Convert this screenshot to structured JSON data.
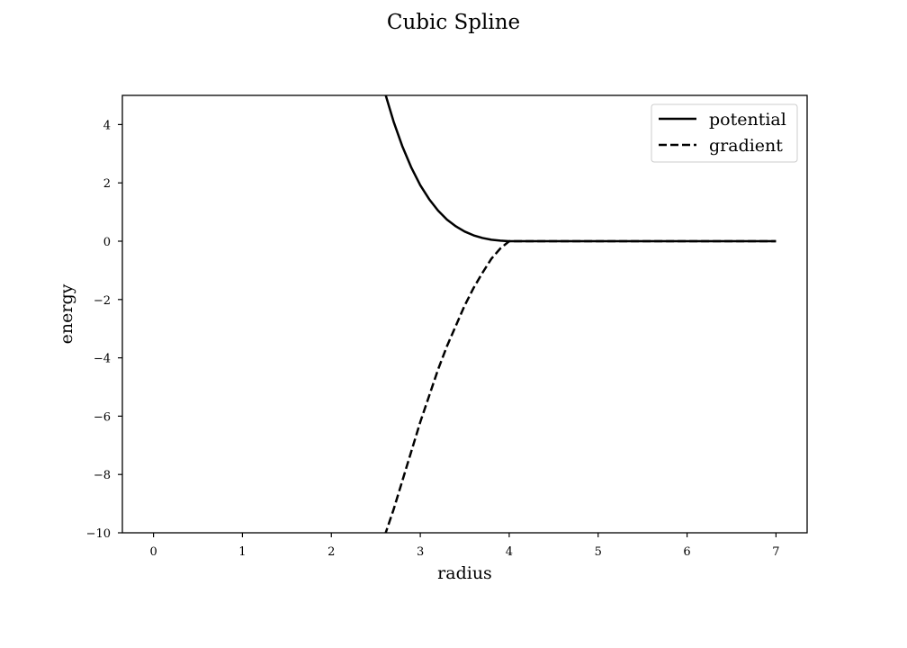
{
  "chart_data": {
    "type": "line",
    "title": "Cubic Spline",
    "xlabel": "radius",
    "ylabel": "energy",
    "xlim": [
      -0.35,
      7.35
    ],
    "ylim": [
      -10,
      5
    ],
    "x_ticks": [
      0,
      1,
      2,
      3,
      4,
      5,
      6,
      7
    ],
    "y_ticks": [
      -10,
      -8,
      -6,
      -4,
      -2,
      0,
      2,
      4
    ],
    "x_tick_labels": [
      "0",
      "1",
      "2",
      "3",
      "4",
      "5",
      "6",
      "7"
    ],
    "y_tick_labels": [
      "−10",
      "−8",
      "−6",
      "−4",
      "−2",
      "0",
      "2",
      "4"
    ],
    "grid": false,
    "legend_position": "top-right",
    "series": [
      {
        "name": "potential",
        "line_style": "solid",
        "color": "#000000",
        "x": [
          2.6,
          2.7,
          2.8,
          2.9,
          3.0,
          3.1,
          3.2,
          3.3,
          3.4,
          3.5,
          3.6,
          3.7,
          3.8,
          3.9,
          4.0,
          4.5,
          5.0,
          5.5,
          6.0,
          6.5,
          7.0
        ],
        "y": [
          5.12,
          4.1,
          3.24,
          2.52,
          1.92,
          1.44,
          1.05,
          0.74,
          0.51,
          0.33,
          0.2,
          0.11,
          0.05,
          0.02,
          0.0,
          0.0,
          0.0,
          0.0,
          0.0,
          0.0,
          0.0
        ]
      },
      {
        "name": "gradient",
        "line_style": "dashed",
        "color": "#000000",
        "x": [
          2.6,
          2.7,
          2.8,
          2.9,
          3.0,
          3.1,
          3.2,
          3.3,
          3.4,
          3.5,
          3.6,
          3.7,
          3.8,
          3.9,
          4.0,
          4.5,
          5.0,
          5.5,
          6.0,
          6.5,
          7.0
        ],
        "y": [
          -10.1,
          -9.2,
          -8.2,
          -7.2,
          -6.2,
          -5.3,
          -4.4,
          -3.6,
          -2.9,
          -2.2,
          -1.6,
          -1.08,
          -0.6,
          -0.25,
          0.0,
          0.0,
          0.0,
          0.0,
          0.0,
          0.0,
          0.0
        ]
      }
    ]
  }
}
